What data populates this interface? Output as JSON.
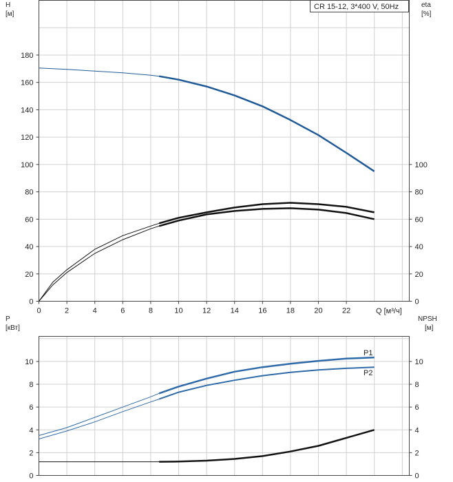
{
  "title_box": "CR 15-12, 3*400 V, 50Hz",
  "colors": {
    "head": "#1f5a96",
    "eta": "#111111",
    "power": "#2e6aa8",
    "npsh": "#111111",
    "grid": "#d0d0d0"
  },
  "chart_data": [
    {
      "type": "line",
      "name": "head_efficiency",
      "left_axis": {
        "label": "H",
        "unit": "[м]",
        "ticks": [
          0,
          20,
          40,
          60,
          80,
          100,
          120,
          140,
          160,
          180
        ],
        "range": [
          0,
          220
        ]
      },
      "right_axis": {
        "label": "eta",
        "unit": "[%]",
        "ticks": [
          0,
          20,
          40,
          60,
          80,
          100
        ],
        "range": [
          0,
          220
        ]
      },
      "x_axis": {
        "label": "Q [м³/ч]",
        "ticks": [
          0,
          2,
          4,
          6,
          8,
          10,
          12,
          14,
          16,
          18,
          20,
          22
        ],
        "range": [
          0,
          26.5
        ]
      },
      "series": [
        {
          "id": "head",
          "axis": "left",
          "x": [
            0,
            2,
            4,
            6,
            8,
            8.6,
            10,
            12,
            14,
            16,
            18,
            20,
            22,
            24
          ],
          "y": [
            170.5,
            169.5,
            168.3,
            167.0,
            165.3,
            164.5,
            162.0,
            157.0,
            150.5,
            142.5,
            132.5,
            121.5,
            108.5,
            95.0
          ],
          "highlight_from": 8.6
        },
        {
          "id": "eta_a",
          "axis": "right",
          "x": [
            0,
            1,
            2,
            4,
            6,
            8,
            8.6,
            10,
            12,
            14,
            16,
            18,
            20,
            22,
            24
          ],
          "y": [
            0,
            12,
            21,
            35,
            45,
            53,
            55,
            59,
            63.5,
            66,
            67.5,
            68,
            67,
            64.5,
            60
          ],
          "highlight_from": 8.6
        },
        {
          "id": "eta_b",
          "axis": "right",
          "x": [
            0,
            1,
            2,
            4,
            6,
            8,
            8.6,
            10,
            12,
            14,
            16,
            18,
            20,
            22,
            24
          ],
          "y": [
            0,
            14,
            23,
            38,
            48,
            55,
            57,
            61,
            65,
            68.5,
            71,
            72,
            71,
            69,
            65
          ],
          "highlight_from": 8.6
        }
      ]
    },
    {
      "type": "line",
      "name": "power_npsh",
      "left_axis": {
        "label": "P",
        "unit": "[кВт]",
        "ticks": [
          0,
          2,
          4,
          6,
          8,
          10
        ],
        "range": [
          0,
          12.2
        ]
      },
      "right_axis": {
        "label": "NPSH",
        "unit": "[м]",
        "ticks": [
          0,
          2,
          4,
          6,
          8,
          10
        ],
        "range": [
          0,
          12.2
        ]
      },
      "x_axis": {
        "range": [
          0,
          26.5
        ]
      },
      "series": [
        {
          "id": "P1",
          "name": "P1",
          "axis": "left",
          "x": [
            0,
            2,
            4,
            6,
            8,
            8.6,
            10,
            12,
            14,
            16,
            18,
            20,
            22,
            24
          ],
          "y": [
            3.5,
            4.2,
            5.1,
            6.0,
            6.9,
            7.2,
            7.8,
            8.5,
            9.1,
            9.5,
            9.8,
            10.05,
            10.25,
            10.35
          ],
          "highlight_from": 8.6
        },
        {
          "id": "P2",
          "name": "P2",
          "axis": "left",
          "x": [
            0,
            2,
            4,
            6,
            8,
            8.6,
            10,
            12,
            14,
            16,
            18,
            20,
            22,
            24
          ],
          "y": [
            3.2,
            3.9,
            4.7,
            5.6,
            6.45,
            6.7,
            7.3,
            7.9,
            8.35,
            8.75,
            9.05,
            9.25,
            9.4,
            9.5
          ],
          "highlight_from": 8.6
        },
        {
          "id": "NPSH",
          "axis": "right",
          "x": [
            0,
            2,
            4,
            6,
            8,
            8.6,
            10,
            12,
            14,
            16,
            18,
            20,
            22,
            24
          ],
          "y": [
            1.2,
            1.2,
            1.2,
            1.2,
            1.2,
            1.2,
            1.22,
            1.3,
            1.45,
            1.7,
            2.1,
            2.6,
            3.3,
            4.0
          ],
          "highlight_from": 8.6
        }
      ]
    }
  ]
}
